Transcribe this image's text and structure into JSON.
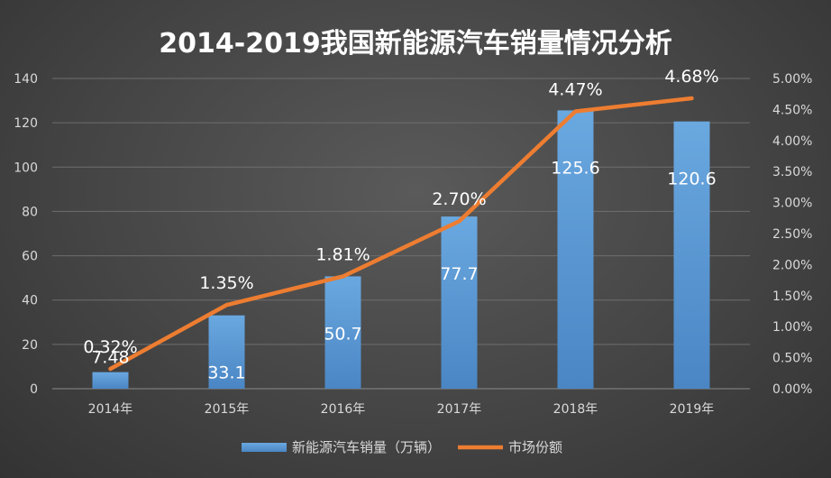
{
  "chart_data": {
    "type": "bar",
    "title": "2014-2019我国新能源汽车销量情况分析",
    "categories": [
      "2014年",
      "2015年",
      "2016年",
      "2017年",
      "2018年",
      "2019年"
    ],
    "series": [
      {
        "name": "新能源汽车销量（万辆）",
        "type": "bar",
        "axis": "left",
        "values": [
          7.48,
          33.1,
          50.7,
          77.7,
          125.6,
          120.6
        ],
        "labels": [
          "7.48",
          "33.1",
          "50.7",
          "77.7",
          "125.6",
          "120.6"
        ],
        "color": "#5b9bd5"
      },
      {
        "name": "市场份额",
        "type": "line",
        "axis": "right",
        "values": [
          0.32,
          1.35,
          1.81,
          2.7,
          4.47,
          4.68
        ],
        "labels": [
          "0.32%",
          "1.35%",
          "1.81%",
          "2.70%",
          "4.47%",
          "4.68%"
        ],
        "color": "#ed7d31"
      }
    ],
    "y_left": {
      "range": [
        0,
        140
      ],
      "ticks": [
        "0",
        "20",
        "40",
        "60",
        "80",
        "100",
        "120",
        "140"
      ]
    },
    "y_right": {
      "range": [
        0,
        5
      ],
      "ticks": [
        "0.00%",
        "0.50%",
        "1.00%",
        "1.50%",
        "2.00%",
        "2.50%",
        "3.00%",
        "3.50%",
        "4.00%",
        "4.50%",
        "5.00%"
      ]
    },
    "grid": true,
    "legend": "bottom",
    "colors": {
      "background": "#454545",
      "text": "#ffffff",
      "axis_text": "#d9d9d9",
      "grid": "#6e6e6e"
    }
  }
}
